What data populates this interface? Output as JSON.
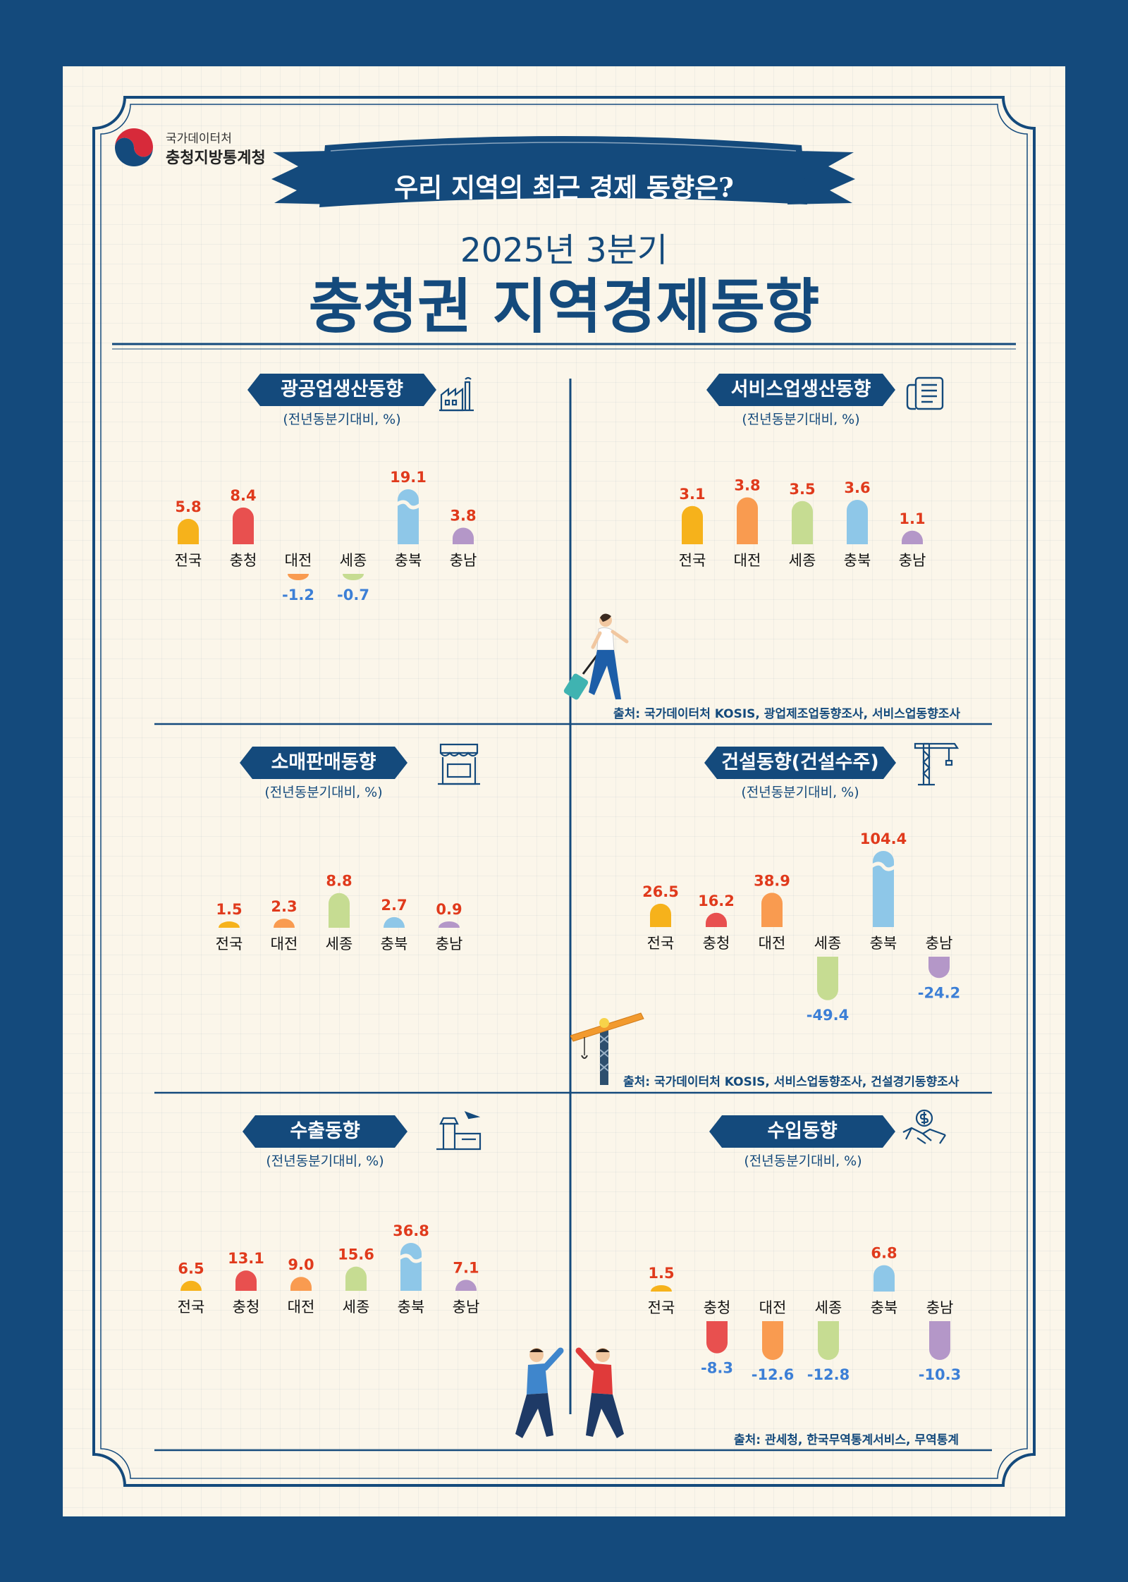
{
  "header": {
    "org_line1": "국가데이터처",
    "org_line2": "충청지방통계청",
    "banner": "우리 지역의 최근 경제 동향은?",
    "subtitle": "2025년 3분기",
    "title": "충청권 지역경제동향"
  },
  "colors": {
    "navy": "#144a7c",
    "positive_label": "#e03a1c",
    "negative_label": "#3c7fd6",
    "전국": "#f6b21b",
    "충청": "#e8504f",
    "대전": "#f99b50",
    "세종": "#c6dc92",
    "충북": "#8ec7e8",
    "충남": "#b497c8"
  },
  "panels": [
    {
      "title": "광공업생산동향",
      "unit": "(전년동분기대비, %)",
      "icon": "factory-icon"
    },
    {
      "title": "서비스업생산동향",
      "unit": "(전년동분기대비, %)",
      "icon": "newspaper-icon"
    },
    {
      "title": "소매판매동향",
      "unit": "(전년동분기대비, %)",
      "icon": "store-icon"
    },
    {
      "title": "건설동향(건설수주)",
      "unit": "(전년동분기대비, %)",
      "icon": "crane-icon"
    },
    {
      "title": "수출동향",
      "unit": "(전년동분기대비, %)",
      "icon": "airport-icon"
    },
    {
      "title": "수입동향",
      "unit": "(전년동분기대비, %)",
      "icon": "money-handshake-icon"
    }
  ],
  "sources": [
    "출처: 국가데이터처 KOSIS, 광업제조업동향조사, 서비스업동향조사",
    "출처: 국가데이터처 KOSIS, 서비스업동향조사, 건설경기동향조사",
    "출처: 관세청, 한국무역통계서비스, 무역통계"
  ],
  "chart_data": [
    {
      "type": "bar",
      "title": "광공업생산동향",
      "categories": [
        "전국",
        "충청",
        "대전",
        "세종",
        "충북",
        "충남"
      ],
      "values": [
        5.8,
        8.4,
        -1.2,
        -0.7,
        19.1,
        3.8
      ]
    },
    {
      "type": "bar",
      "title": "서비스업생산동향",
      "categories": [
        "전국",
        "대전",
        "세종",
        "충북",
        "충남"
      ],
      "values": [
        3.1,
        3.8,
        3.5,
        3.6,
        1.1
      ]
    },
    {
      "type": "bar",
      "title": "소매판매동향",
      "categories": [
        "전국",
        "대전",
        "세종",
        "충북",
        "충남"
      ],
      "values": [
        1.5,
        2.3,
        8.8,
        2.7,
        0.9
      ]
    },
    {
      "type": "bar",
      "title": "건설동향(건설수주)",
      "categories": [
        "전국",
        "충청",
        "대전",
        "세종",
        "충북",
        "충남"
      ],
      "values": [
        26.5,
        16.2,
        38.9,
        -49.4,
        104.4,
        -24.2
      ]
    },
    {
      "type": "bar",
      "title": "수출동향",
      "categories": [
        "전국",
        "충청",
        "대전",
        "세종",
        "충북",
        "충남"
      ],
      "values": [
        6.5,
        13.1,
        9.0,
        15.6,
        36.8,
        7.1
      ]
    },
    {
      "type": "bar",
      "title": "수입동향",
      "categories": [
        "전국",
        "충청",
        "대전",
        "세종",
        "충북",
        "충남"
      ],
      "values": [
        1.5,
        -8.3,
        -12.6,
        -12.8,
        6.8,
        -10.3
      ]
    }
  ]
}
